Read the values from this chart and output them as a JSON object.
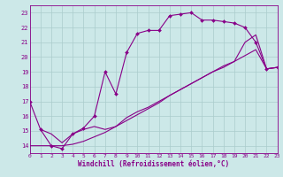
{
  "bg_color": "#cce8e8",
  "grid_color": "#aacccc",
  "line_color": "#880088",
  "xlim": [
    0,
    23
  ],
  "ylim": [
    13.5,
    23.5
  ],
  "xticks": [
    0,
    1,
    2,
    3,
    4,
    5,
    6,
    7,
    8,
    9,
    10,
    11,
    12,
    13,
    14,
    15,
    16,
    17,
    18,
    19,
    20,
    21,
    22,
    23
  ],
  "yticks": [
    14,
    15,
    16,
    17,
    18,
    19,
    20,
    21,
    22,
    23
  ],
  "xlabel": "Windchill (Refroidissement éolien,°C)",
  "line1_x": [
    0,
    1,
    2,
    3,
    4,
    5,
    6,
    7,
    8,
    9,
    10,
    11,
    12,
    13,
    14,
    15,
    16,
    17,
    18,
    19,
    20,
    21,
    22,
    23
  ],
  "line1_y": [
    17.0,
    15.1,
    14.0,
    13.8,
    14.8,
    15.2,
    16.0,
    19.0,
    17.5,
    20.3,
    21.6,
    21.8,
    21.8,
    22.8,
    22.9,
    23.0,
    22.5,
    22.5,
    22.4,
    22.3,
    22.0,
    21.0,
    19.2,
    19.3
  ],
  "line2_x": [
    0,
    1,
    2,
    3,
    4,
    5,
    6,
    7,
    8,
    9,
    10,
    11,
    12,
    13,
    14,
    15,
    16,
    17,
    18,
    19,
    20,
    21,
    22,
    23
  ],
  "line2_y": [
    14.0,
    14.0,
    14.0,
    14.0,
    14.1,
    14.3,
    14.6,
    14.9,
    15.3,
    15.7,
    16.1,
    16.5,
    16.9,
    17.4,
    17.8,
    18.2,
    18.6,
    19.0,
    19.4,
    19.7,
    21.0,
    21.5,
    19.2,
    19.3
  ],
  "line3_x": [
    1,
    2,
    3,
    4,
    5,
    6,
    7,
    8,
    9,
    10,
    11,
    12,
    13,
    14,
    15,
    16,
    17,
    18,
    19,
    20,
    21,
    22,
    23
  ],
  "line3_y": [
    15.1,
    14.8,
    14.2,
    14.8,
    15.1,
    15.3,
    15.1,
    15.3,
    15.9,
    16.3,
    16.6,
    17.0,
    17.4,
    17.8,
    18.2,
    18.6,
    19.0,
    19.3,
    19.7,
    20.1,
    20.5,
    19.2,
    19.3
  ]
}
